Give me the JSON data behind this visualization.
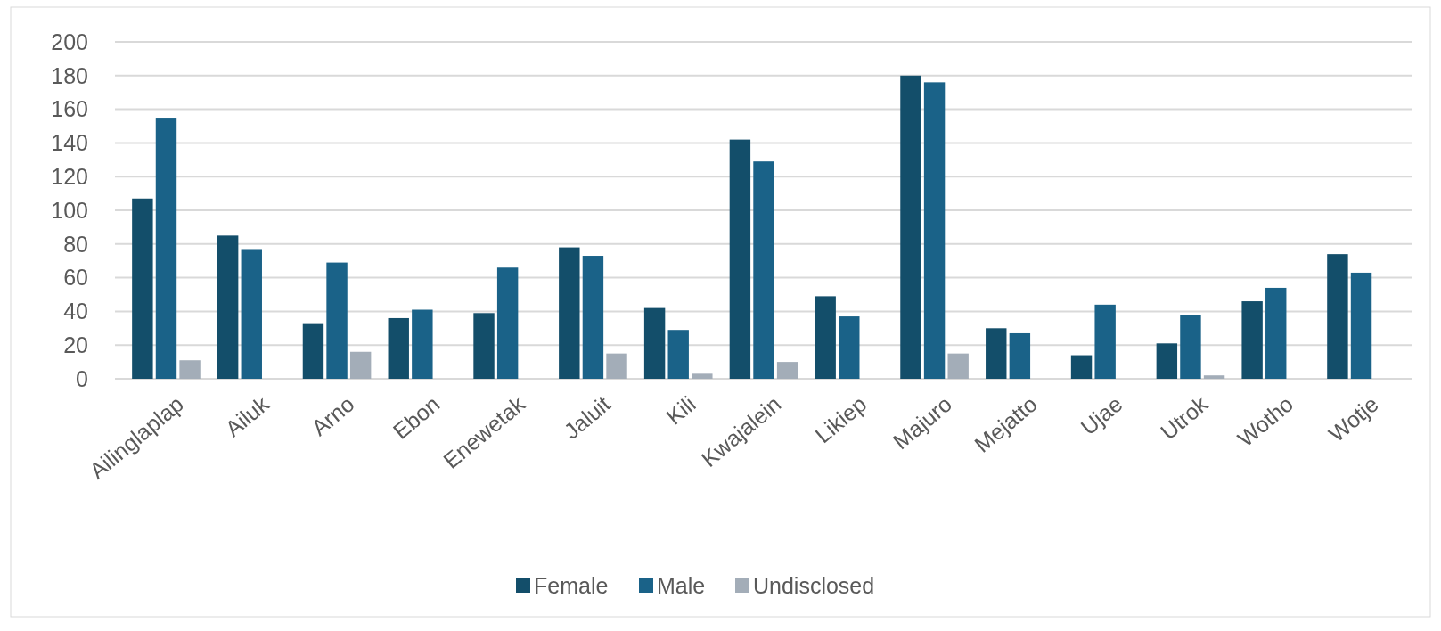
{
  "chart_data": {
    "type": "bar",
    "categories": [
      "Ailinglaplap",
      "Ailuk",
      "Arno",
      "Ebon",
      "Enewetak",
      "Jaluit",
      "Kili",
      "Kwajalein",
      "Likiep",
      "Majuro",
      "Mejatto",
      "Ujae",
      "Utrok",
      "Wotho",
      "Wotje"
    ],
    "series": [
      {
        "name": "Female",
        "color": "#134e6a",
        "values": [
          107,
          85,
          33,
          36,
          39,
          78,
          42,
          142,
          49,
          180,
          30,
          14,
          21,
          46,
          74
        ]
      },
      {
        "name": "Male",
        "color": "#1a6288",
        "values": [
          155,
          77,
          69,
          41,
          66,
          73,
          29,
          129,
          37,
          176,
          27,
          44,
          38,
          54,
          63
        ]
      },
      {
        "name": "Undisclosed",
        "color": "#a3adb8",
        "values": [
          11,
          null,
          16,
          null,
          null,
          15,
          3,
          10,
          null,
          15,
          null,
          null,
          2,
          null,
          null
        ]
      }
    ],
    "ylim": [
      0,
      200
    ],
    "yticks": [
      0,
      20,
      40,
      60,
      80,
      100,
      120,
      140,
      160,
      180,
      200
    ],
    "grid": "y",
    "legend": "bottom"
  }
}
